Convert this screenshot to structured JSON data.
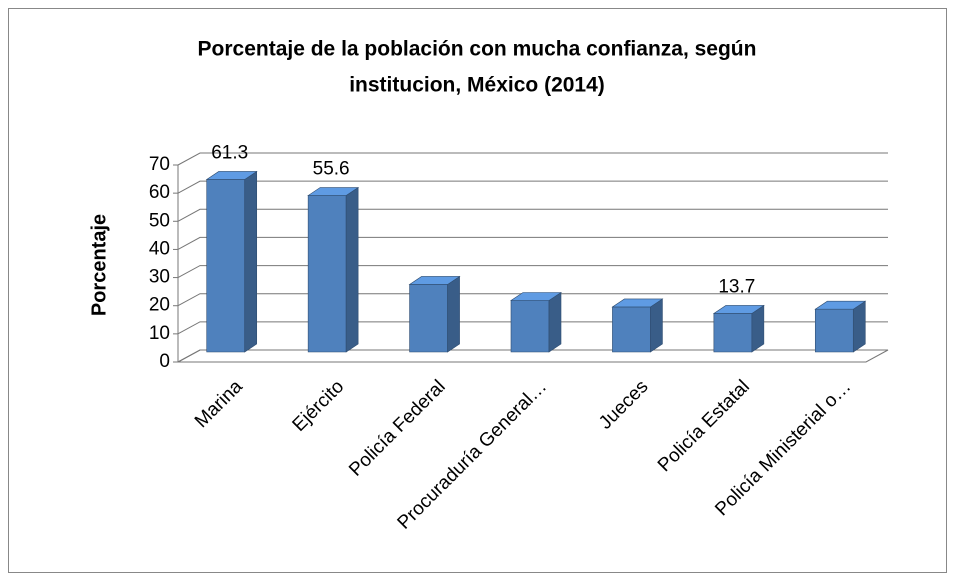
{
  "chart_data": {
    "type": "bar3d",
    "title": "Porcentaje de la población con mucha confianza, según institucion, México (2014)",
    "title_lines": [
      "Porcentaje de la población con mucha confianza, según",
      "institucion, México (2014)"
    ],
    "y_label": "Porcentaje",
    "categories": [
      "Marina",
      "Ejército",
      "Policía Federal",
      "Procuraduría General…",
      "Jueces",
      "Policía Estatal",
      "Policía Ministerial o…"
    ],
    "values": [
      61.3,
      55.6,
      24,
      18.3,
      16,
      13.7,
      15.2
    ],
    "value_labels": [
      "61.3",
      "55.6",
      null,
      null,
      null,
      "13.7",
      null
    ],
    "color": "#4f81bd",
    "ylim": [
      0,
      70
    ],
    "yticks": [
      0,
      10,
      20,
      30,
      40,
      50,
      60,
      70
    ],
    "grid": true
  }
}
